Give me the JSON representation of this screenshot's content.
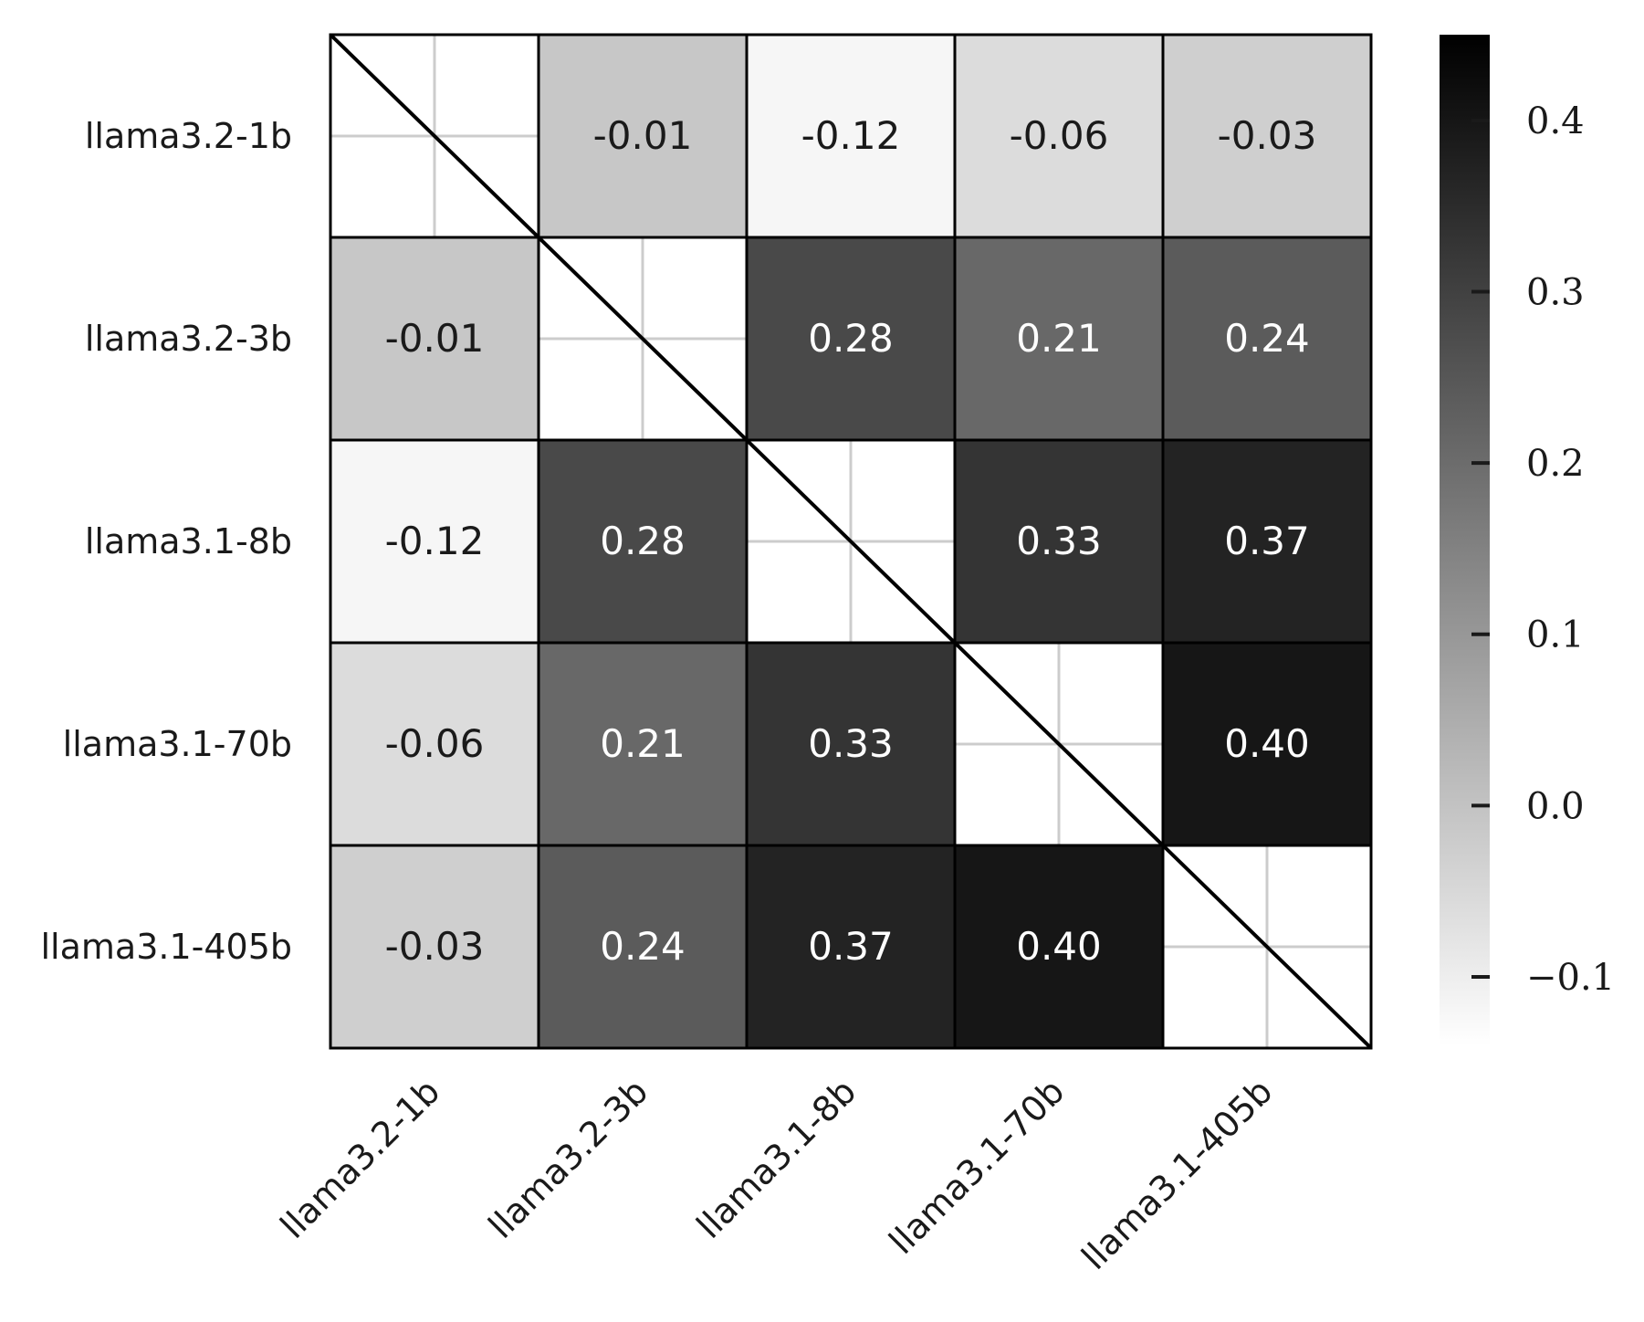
{
  "chart_data": {
    "type": "heatmap",
    "title": "",
    "xlabel": "",
    "ylabel": "",
    "rows": [
      "llama3.2-1b",
      "llama3.2-3b",
      "llama3.1-8b",
      "llama3.1-70b",
      "llama3.1-405b"
    ],
    "columns": [
      "llama3.2-1b",
      "llama3.2-3b",
      "llama3.1-8b",
      "llama3.1-70b",
      "llama3.1-405b"
    ],
    "values": [
      [
        null,
        -0.01,
        -0.12,
        -0.06,
        -0.03
      ],
      [
        -0.01,
        null,
        0.28,
        0.21,
        0.24
      ],
      [
        -0.12,
        0.28,
        null,
        0.33,
        0.37
      ],
      [
        -0.06,
        0.21,
        0.33,
        null,
        0.4
      ],
      [
        -0.03,
        0.24,
        0.37,
        0.4,
        null
      ]
    ],
    "cell_labels": [
      [
        "",
        "-0.01",
        "-0.12",
        "-0.06",
        "-0.03"
      ],
      [
        "-0.01",
        "",
        "0.28",
        "0.21",
        "0.24"
      ],
      [
        "-0.12",
        "0.28",
        "",
        "0.33",
        "0.37"
      ],
      [
        "-0.06",
        "0.21",
        "0.33",
        "",
        "0.40"
      ],
      [
        "-0.03",
        "0.24",
        "0.37",
        "0.40",
        ""
      ]
    ],
    "diagonal": "empty with diagonal line",
    "colormap": "greys",
    "colorbar": {
      "vmin": -0.14,
      "vmax": 0.45,
      "ticks": [
        -0.1,
        0.0,
        0.1,
        0.2,
        0.3,
        0.4
      ],
      "tick_labels": [
        "−0.1",
        "0.0",
        "0.1",
        "0.2",
        "0.3",
        "0.4"
      ],
      "placement": "right"
    },
    "grid": true
  },
  "colors": {
    "low": "#ffffff",
    "high": "#000000",
    "cell_border": "#000000",
    "grid": "#cccccc",
    "text_dark": "#1a1a1a",
    "text_light": "#ffffff"
  }
}
